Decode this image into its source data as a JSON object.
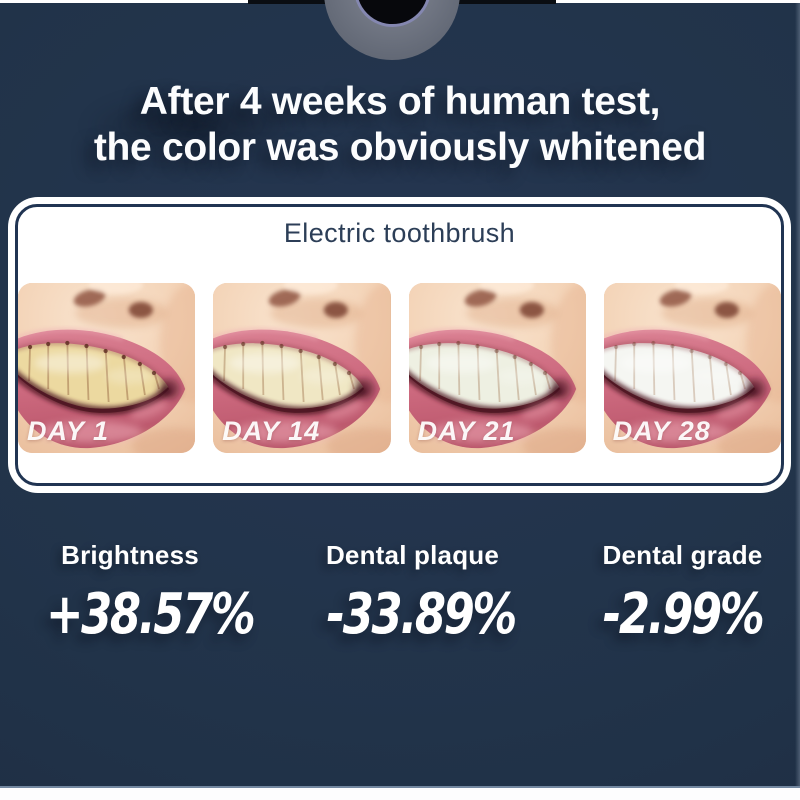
{
  "background": {
    "navy": "#22334a",
    "top_strip": "#ffffff",
    "bottom_strip": "#fdfdfe",
    "divider_line": "#7388a1"
  },
  "top_graphic": {
    "name": "device-top-camera-cutout",
    "bar_color": "#0a0d12",
    "outer_ring_color": "#6c7280",
    "accent_ring_color": "#8487b0",
    "core_color": "#07080c"
  },
  "title": {
    "line1": "After 4 weeks of human test,",
    "line2": "the color was obviously whitened"
  },
  "panel": {
    "heading": "Electric toothbrush",
    "border_color": "#203452",
    "photos": [
      {
        "label": "DAY 1",
        "teeth_color": "#ecd9a0",
        "stain_opacity": 0.85
      },
      {
        "label": "DAY 14",
        "teeth_color": "#f0e7c4",
        "stain_opacity": 0.6
      },
      {
        "label": "DAY 21",
        "teeth_color": "#eef0e2",
        "stain_opacity": 0.42
      },
      {
        "label": "DAY 28",
        "teeth_color": "#f5f6f2",
        "stain_opacity": 0.28
      }
    ]
  },
  "stats": [
    {
      "label": "Brightness",
      "value": "+38.57%"
    },
    {
      "label": "Dental plaque",
      "value": "-33.89%"
    },
    {
      "label": "Dental grade",
      "value": "-2.99%"
    }
  ]
}
